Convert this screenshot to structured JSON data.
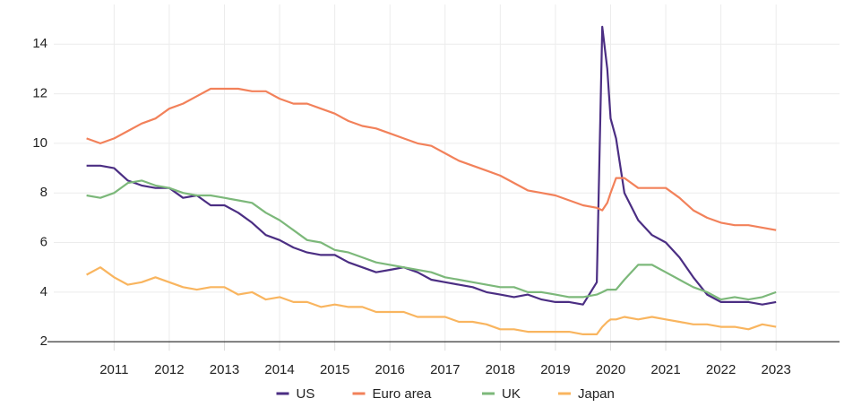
{
  "chart_data": {
    "type": "line",
    "x": [
      2010.5,
      2010.75,
      2011.0,
      2011.25,
      2011.5,
      2011.75,
      2012.0,
      2012.25,
      2012.5,
      2012.75,
      2013.0,
      2013.25,
      2013.5,
      2013.75,
      2014.0,
      2014.25,
      2014.5,
      2014.75,
      2015.0,
      2015.25,
      2015.5,
      2015.75,
      2016.0,
      2016.25,
      2016.5,
      2016.75,
      2017.0,
      2017.25,
      2017.5,
      2017.75,
      2018.0,
      2018.25,
      2018.5,
      2018.75,
      2019.0,
      2019.25,
      2019.5,
      2019.75,
      2019.85,
      2019.94,
      2020.0,
      2020.1,
      2020.25,
      2020.5,
      2020.75,
      2021.0,
      2021.25,
      2021.5,
      2021.75,
      2022.0,
      2022.25,
      2022.5,
      2022.75,
      2023.0
    ],
    "series": [
      {
        "name": "US",
        "color": "#4b2e83",
        "values": [
          9.1,
          9.1,
          9.0,
          8.5,
          8.3,
          8.2,
          8.2,
          7.8,
          7.9,
          7.5,
          7.5,
          7.2,
          6.8,
          6.3,
          6.1,
          5.8,
          5.6,
          5.5,
          5.5,
          5.2,
          5.0,
          4.8,
          4.9,
          5.0,
          4.8,
          4.5,
          4.4,
          4.3,
          4.2,
          4.0,
          3.9,
          3.8,
          3.9,
          3.7,
          3.6,
          3.6,
          3.5,
          4.4,
          14.7,
          13.0,
          11.0,
          10.2,
          8.0,
          6.9,
          6.3,
          6.0,
          5.4,
          4.6,
          3.9,
          3.6,
          3.6,
          3.6,
          3.5,
          3.6
        ]
      },
      {
        "name": "Euro area",
        "color": "#f2815a",
        "values": [
          10.2,
          10.0,
          10.2,
          10.5,
          10.8,
          11.0,
          11.4,
          11.6,
          11.9,
          12.2,
          12.2,
          12.2,
          12.1,
          12.1,
          11.8,
          11.6,
          11.6,
          11.4,
          11.2,
          10.9,
          10.7,
          10.6,
          10.4,
          10.2,
          10.0,
          9.9,
          9.6,
          9.3,
          9.1,
          8.9,
          8.7,
          8.4,
          8.1,
          8.0,
          7.9,
          7.7,
          7.5,
          7.4,
          7.3,
          7.6,
          8.0,
          8.6,
          8.6,
          8.2,
          8.2,
          8.2,
          7.8,
          7.3,
          7.0,
          6.8,
          6.7,
          6.7,
          6.6,
          6.5
        ]
      },
      {
        "name": "UK",
        "color": "#7cb87a",
        "values": [
          7.9,
          7.8,
          8.0,
          8.4,
          8.5,
          8.3,
          8.2,
          8.0,
          7.9,
          7.9,
          7.8,
          7.7,
          7.6,
          7.2,
          6.9,
          6.5,
          6.1,
          6.0,
          5.7,
          5.6,
          5.4,
          5.2,
          5.1,
          5.0,
          4.9,
          4.8,
          4.6,
          4.5,
          4.4,
          4.3,
          4.2,
          4.2,
          4.0,
          4.0,
          3.9,
          3.8,
          3.8,
          3.9,
          4.0,
          4.1,
          4.1,
          4.1,
          4.5,
          5.1,
          5.1,
          4.8,
          4.5,
          4.2,
          4.0,
          3.7,
          3.8,
          3.7,
          3.8,
          4.0
        ]
      },
      {
        "name": "Japan",
        "color": "#f9b55f",
        "values": [
          4.7,
          5.0,
          4.6,
          4.3,
          4.4,
          4.6,
          4.4,
          4.2,
          4.1,
          4.2,
          4.2,
          3.9,
          4.0,
          3.7,
          3.8,
          3.6,
          3.6,
          3.4,
          3.5,
          3.4,
          3.4,
          3.2,
          3.2,
          3.2,
          3.0,
          3.0,
          3.0,
          2.8,
          2.8,
          2.7,
          2.5,
          2.5,
          2.4,
          2.4,
          2.4,
          2.4,
          2.3,
          2.3,
          2.6,
          2.8,
          2.9,
          2.9,
          3.0,
          2.9,
          3.0,
          2.9,
          2.8,
          2.7,
          2.7,
          2.6,
          2.6,
          2.5,
          2.7,
          2.6
        ]
      }
    ],
    "xlim": [
      2009.5,
      2024.15
    ],
    "xticks": [
      2011,
      2012,
      2013,
      2014,
      2015,
      2016,
      2017,
      2018,
      2019,
      2020,
      2021,
      2022,
      2023
    ],
    "ylim": [
      1.5,
      15.6
    ],
    "yticks": [
      2,
      4,
      6,
      8,
      10,
      12,
      14
    ],
    "grid": true,
    "legend": "bottom"
  }
}
